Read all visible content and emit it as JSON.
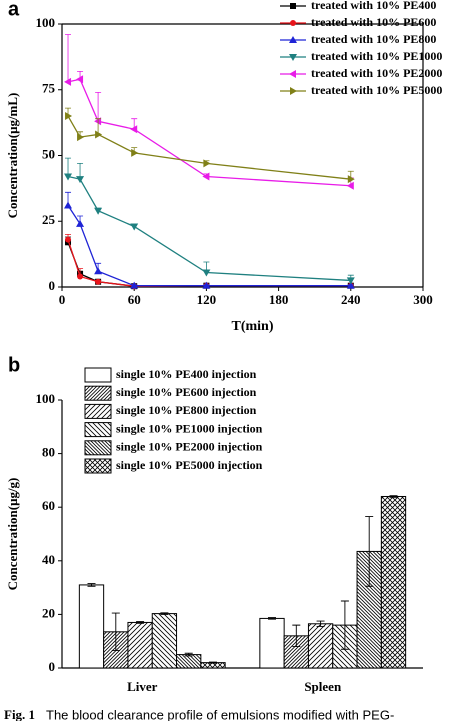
{
  "chart_data": [
    {
      "type": "line",
      "label": "a",
      "ylabel": "Concentration(μg/mL)",
      "xlabel": "T(min)",
      "x": [
        5,
        15,
        30,
        60,
        120,
        240
      ],
      "xlim": [
        0,
        300
      ],
      "xticks": [
        0,
        60,
        120,
        180,
        240,
        300
      ],
      "ylim": [
        0,
        100
      ],
      "yticks": [
        0,
        25,
        50,
        75,
        100
      ],
      "grid": false,
      "legend": "upper right",
      "series": [
        {
          "name": "treated with 10% PE400",
          "color": "#000000",
          "marker": "square",
          "values": [
            17,
            5,
            2,
            0.3,
            0.5,
            0.5
          ],
          "errors": [
            2,
            1,
            0.5,
            0.2,
            0.2,
            0.2
          ]
        },
        {
          "name": "treated with 10% PE600",
          "color": "#e8141b",
          "marker": "circle",
          "values": [
            18,
            4,
            2,
            0.3,
            0.5,
            0.5
          ],
          "errors": [
            2,
            3,
            0.5,
            0.2,
            0.2,
            0.2
          ]
        },
        {
          "name": "treated with 10% PE800",
          "color": "#1f24d6",
          "marker": "triangle-up",
          "values": [
            31,
            24,
            6,
            0.5,
            0.5,
            0.5
          ],
          "errors": [
            5,
            3,
            3,
            0.3,
            0.3,
            0.3
          ]
        },
        {
          "name": "treated with 10% PE1000",
          "color": "#1f8080",
          "marker": "triangle-down",
          "values": [
            42,
            41,
            29,
            23,
            5.5,
            2.5
          ],
          "errors": [
            7,
            6,
            1,
            1,
            4,
            2
          ]
        },
        {
          "name": "treated with 10% PE2000",
          "color": "#e81ce8",
          "marker": "triangle-left",
          "values": [
            78,
            79,
            63,
            60,
            42,
            38.5
          ],
          "errors": [
            18,
            3,
            11,
            4,
            1,
            3
          ]
        },
        {
          "name": "treated with 10% PE5000",
          "color": "#808018",
          "marker": "triangle-right",
          "values": [
            65,
            57,
            58,
            51,
            47,
            41
          ],
          "errors": [
            3,
            2,
            6,
            2,
            1,
            3
          ]
        }
      ]
    },
    {
      "type": "bar",
      "label": "b",
      "ylabel": "Concentration(μg/g)",
      "categories": [
        "Liver",
        "Spleen"
      ],
      "ylim": [
        0,
        100
      ],
      "yticks": [
        0,
        20,
        40,
        60,
        80,
        100
      ],
      "grid": false,
      "legend": "upper left",
      "series": [
        {
          "name": "single 10% PE400 injection",
          "color": "#000000",
          "hatch": "none",
          "values": [
            31,
            18.5
          ],
          "errors": [
            0.5,
            0.3
          ]
        },
        {
          "name": "single 10% PE600 injection",
          "color": "#000000",
          "hatch": "//",
          "values": [
            13.5,
            12
          ],
          "errors": [
            7,
            4
          ]
        },
        {
          "name": "single 10% PE800 injection",
          "color": "#000000",
          "hatch": "/",
          "values": [
            17,
            16.5
          ],
          "errors": [
            0.3,
            1
          ]
        },
        {
          "name": "single 10% PE1000 injection",
          "color": "#000000",
          "hatch": "\\",
          "values": [
            20.3,
            16
          ],
          "errors": [
            0.3,
            9
          ]
        },
        {
          "name": "single 10% PE2000 injection",
          "color": "#000000",
          "hatch": "\\\\",
          "values": [
            5,
            43.5
          ],
          "errors": [
            0.5,
            13
          ]
        },
        {
          "name": "single 10% PE5000 injection",
          "color": "#000000",
          "hatch": "x",
          "values": [
            2,
            64
          ],
          "errors": [
            0.2,
            0.3
          ]
        }
      ]
    }
  ],
  "caption": {
    "label": "Fig. 1",
    "text": "The blood clearance profile of emulsions modified with PEG-"
  }
}
